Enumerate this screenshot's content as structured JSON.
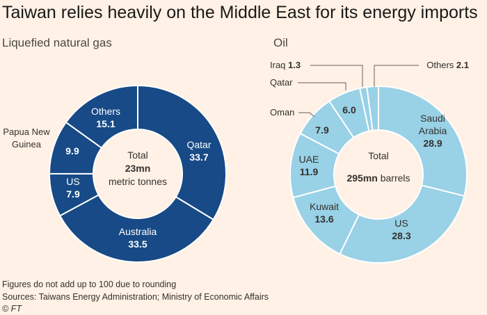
{
  "title": "Taiwan relies heavily on the Middle East for its energy imports",
  "chart_data": [
    {
      "type": "pie",
      "title": "Liquefied natural gas",
      "center_label": {
        "line1": "Total",
        "line2": "23mn",
        "line3": "metric tonnes"
      },
      "categories": [
        "Qatar",
        "Australia",
        "US",
        "Papua New Guinea",
        "Others"
      ],
      "values": [
        33.7,
        33.5,
        7.9,
        9.9,
        15.1
      ],
      "color": "#174a86"
    },
    {
      "type": "pie",
      "title": "Oil",
      "center_label": {
        "line1": "Total",
        "line2": "295mn",
        "line3": "barrels"
      },
      "categories": [
        "Saudi Arabia",
        "US",
        "Kuwait",
        "UAE",
        "Oman",
        "Qatar",
        "Iraq",
        "Others"
      ],
      "values": [
        28.9,
        28.3,
        13.6,
        11.9,
        7.9,
        6.0,
        1.3,
        2.1
      ],
      "color": "#99d1e6"
    }
  ],
  "footer": {
    "note": "Figures do not add up to 100 due to rounding",
    "sources": "Sources: Taiwans Energy Administration; Ministry of Economic Affairs",
    "credit": "© FT"
  }
}
